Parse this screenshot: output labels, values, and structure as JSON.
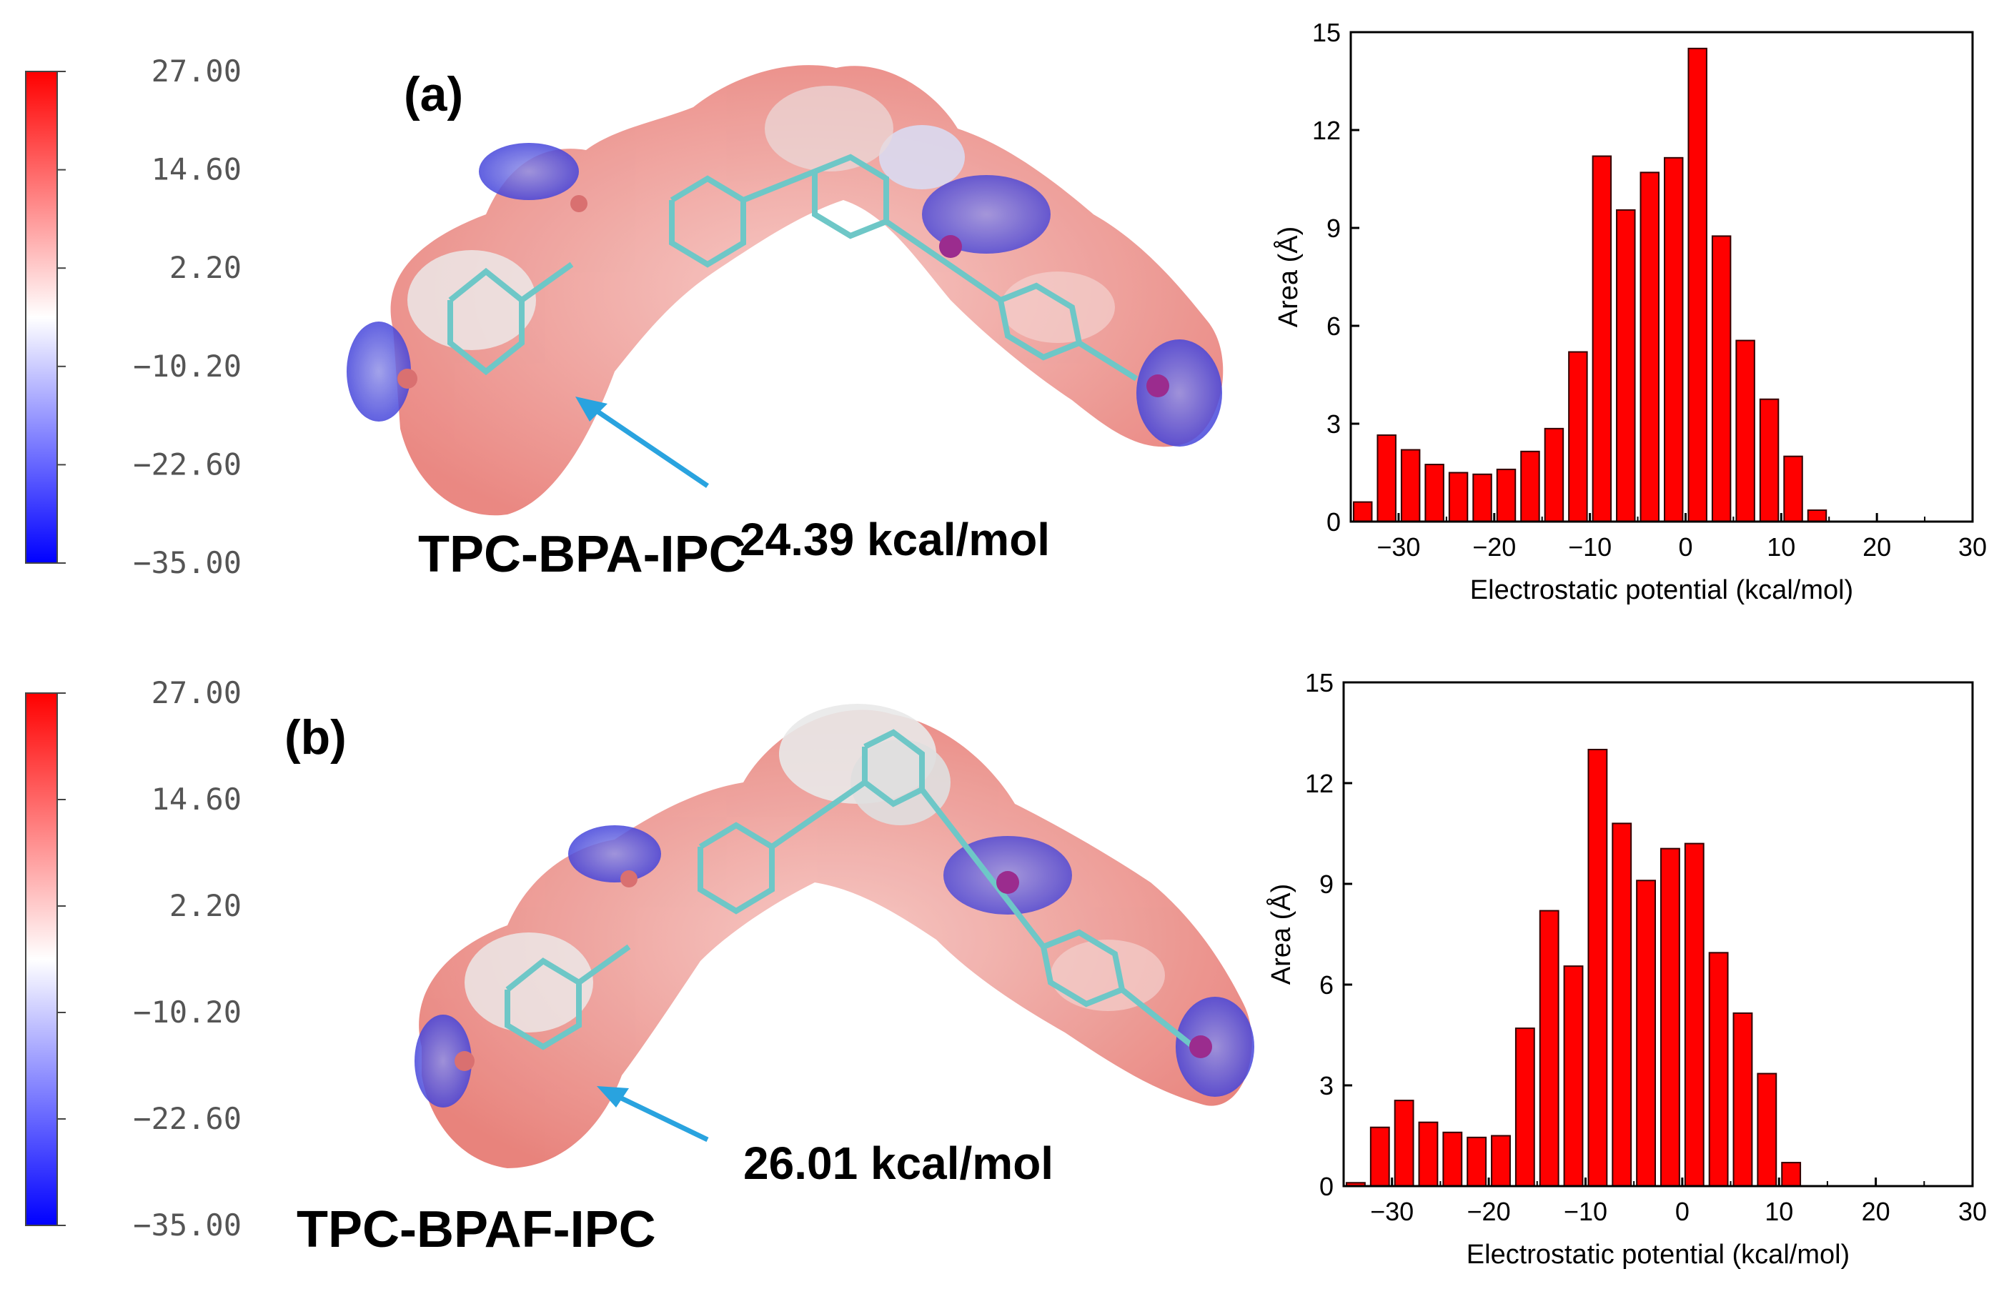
{
  "colors": {
    "bar": "#ff0000",
    "bar_edge": "#330000",
    "scale_high": "#ff0000",
    "scale_mid": "#ffffff",
    "scale_low": "#0000ff",
    "arrow": "#29a3df"
  },
  "panels": [
    {
      "label": "(a)",
      "molecule_name": "TPC-BPA-IPC",
      "max_esp": "24.39 kcal/mol",
      "color_scale": {
        "ticks": [
          "27.00",
          "14.60",
          "2.20",
          "−10.20",
          "−22.60",
          "−35.00"
        ]
      },
      "chart_data": {
        "type": "bar",
        "title": "",
        "xlabel": "Electrostatic potential (kcal/mol)",
        "ylabel": "Area (Å)",
        "xlim": [
          -35,
          30
        ],
        "ylim": [
          0,
          15
        ],
        "xticks": [
          -30,
          -20,
          -10,
          0,
          10,
          20,
          30
        ],
        "yticks": [
          0,
          3,
          6,
          9,
          12,
          15
        ],
        "bin_width": 2.5,
        "x": [
          -33.75,
          -31.25,
          -28.75,
          -26.25,
          -23.75,
          -21.25,
          -18.75,
          -16.25,
          -13.75,
          -11.25,
          -8.75,
          -6.25,
          -3.75,
          -1.25,
          1.25,
          3.75,
          6.25,
          8.75,
          11.25,
          13.75,
          16.25,
          18.75,
          21.25,
          23.75
        ],
        "values": [
          0.6,
          2.65,
          2.2,
          1.75,
          1.5,
          1.45,
          1.6,
          2.15,
          2.85,
          5.2,
          11.2,
          9.55,
          10.7,
          11.15,
          14.5,
          8.75,
          5.55,
          3.75,
          2.0,
          0.35,
          0,
          0,
          0,
          0
        ],
        "values_note": "bars listed left to right"
      }
    },
    {
      "label": "(b)",
      "molecule_name": "TPC-BPAF-IPC",
      "max_esp": "26.01 kcal/mol",
      "color_scale": {
        "ticks": [
          "27.00",
          "14.60",
          "2.20",
          "−10.20",
          "−22.60",
          "−35.00"
        ]
      },
      "chart_data": {
        "type": "bar",
        "title": "",
        "xlabel": "Electrostatic potential (kcal/mol)",
        "ylabel": "Area (Å)",
        "xlim": [
          -35,
          30
        ],
        "ylim": [
          0,
          15
        ],
        "xticks": [
          -30,
          -20,
          -10,
          0,
          10,
          20,
          30
        ],
        "yticks": [
          0,
          3,
          6,
          9,
          12,
          15
        ],
        "bin_width": 2.5,
        "x": [
          -33.75,
          -31.25,
          -28.75,
          -26.25,
          -23.75,
          -21.25,
          -18.75,
          -16.25,
          -13.75,
          -11.25,
          -8.75,
          -6.25,
          -3.75,
          -1.25,
          1.25,
          3.75,
          6.25,
          8.75,
          11.25,
          13.75,
          16.25,
          18.75,
          21.25,
          23.75
        ],
        "values": [
          0.1,
          1.75,
          2.55,
          1.9,
          1.6,
          1.45,
          1.5,
          4.7,
          8.2,
          6.55,
          13.0,
          10.8,
          9.1,
          10.05,
          10.2,
          6.95,
          5.15,
          3.35,
          0.7,
          0,
          0,
          0,
          0,
          0
        ]
      }
    }
  ]
}
